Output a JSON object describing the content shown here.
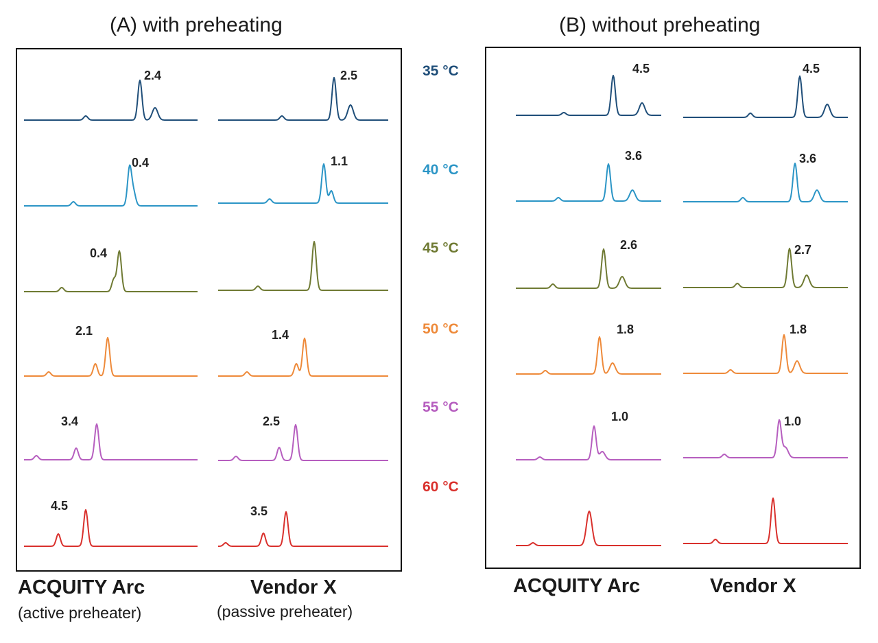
{
  "panel_a": {
    "title": "(A) with preheating"
  },
  "panel_b": {
    "title": "(B) without preheating"
  },
  "columns": {
    "a_left": {
      "label": "ACQUITY Arc",
      "sub": "(active preheater)"
    },
    "a_right": {
      "label": "Vendor X",
      "sub": "(passive preheater)"
    },
    "b_left": {
      "label": "ACQUITY Arc"
    },
    "b_right": {
      "label": "Vendor X"
    }
  },
  "temperatures": [
    {
      "label": "35 °C",
      "color": "#1f4e79"
    },
    {
      "label": "40 °C",
      "color": "#2b95c6"
    },
    {
      "label": "45 °C",
      "color": "#6f7a33"
    },
    {
      "label": "50 °C",
      "color": "#ee8a3a"
    },
    {
      "label": "55 °C",
      "color": "#b65ebf"
    },
    {
      "label": "60 °C",
      "color": "#d9302c"
    }
  ],
  "chart_data": {
    "type": "line",
    "description": "Chromatograms; labels are resolution values between the two main peaks",
    "panels": [
      {
        "name": "A",
        "columns": [
          {
            "column": "ACQUITY Arc",
            "resolution": [
              "2.4",
              "0.4",
              "0.4",
              "2.1",
              "3.4",
              "4.5"
            ]
          },
          {
            "column": "Vendor X",
            "resolution": [
              "2.5",
              "1.1",
              "",
              "1.4",
              "2.5",
              "3.5"
            ]
          }
        ]
      },
      {
        "name": "B",
        "columns": [
          {
            "column": "ACQUITY Arc",
            "resolution": [
              "4.5",
              "3.6",
              "2.6",
              "1.8",
              "1.0",
              ""
            ]
          },
          {
            "column": "Vendor X",
            "resolution": [
              "4.5",
              "3.6",
              "2.7",
              "1.8",
              "1.0",
              ""
            ]
          }
        ]
      }
    ]
  }
}
